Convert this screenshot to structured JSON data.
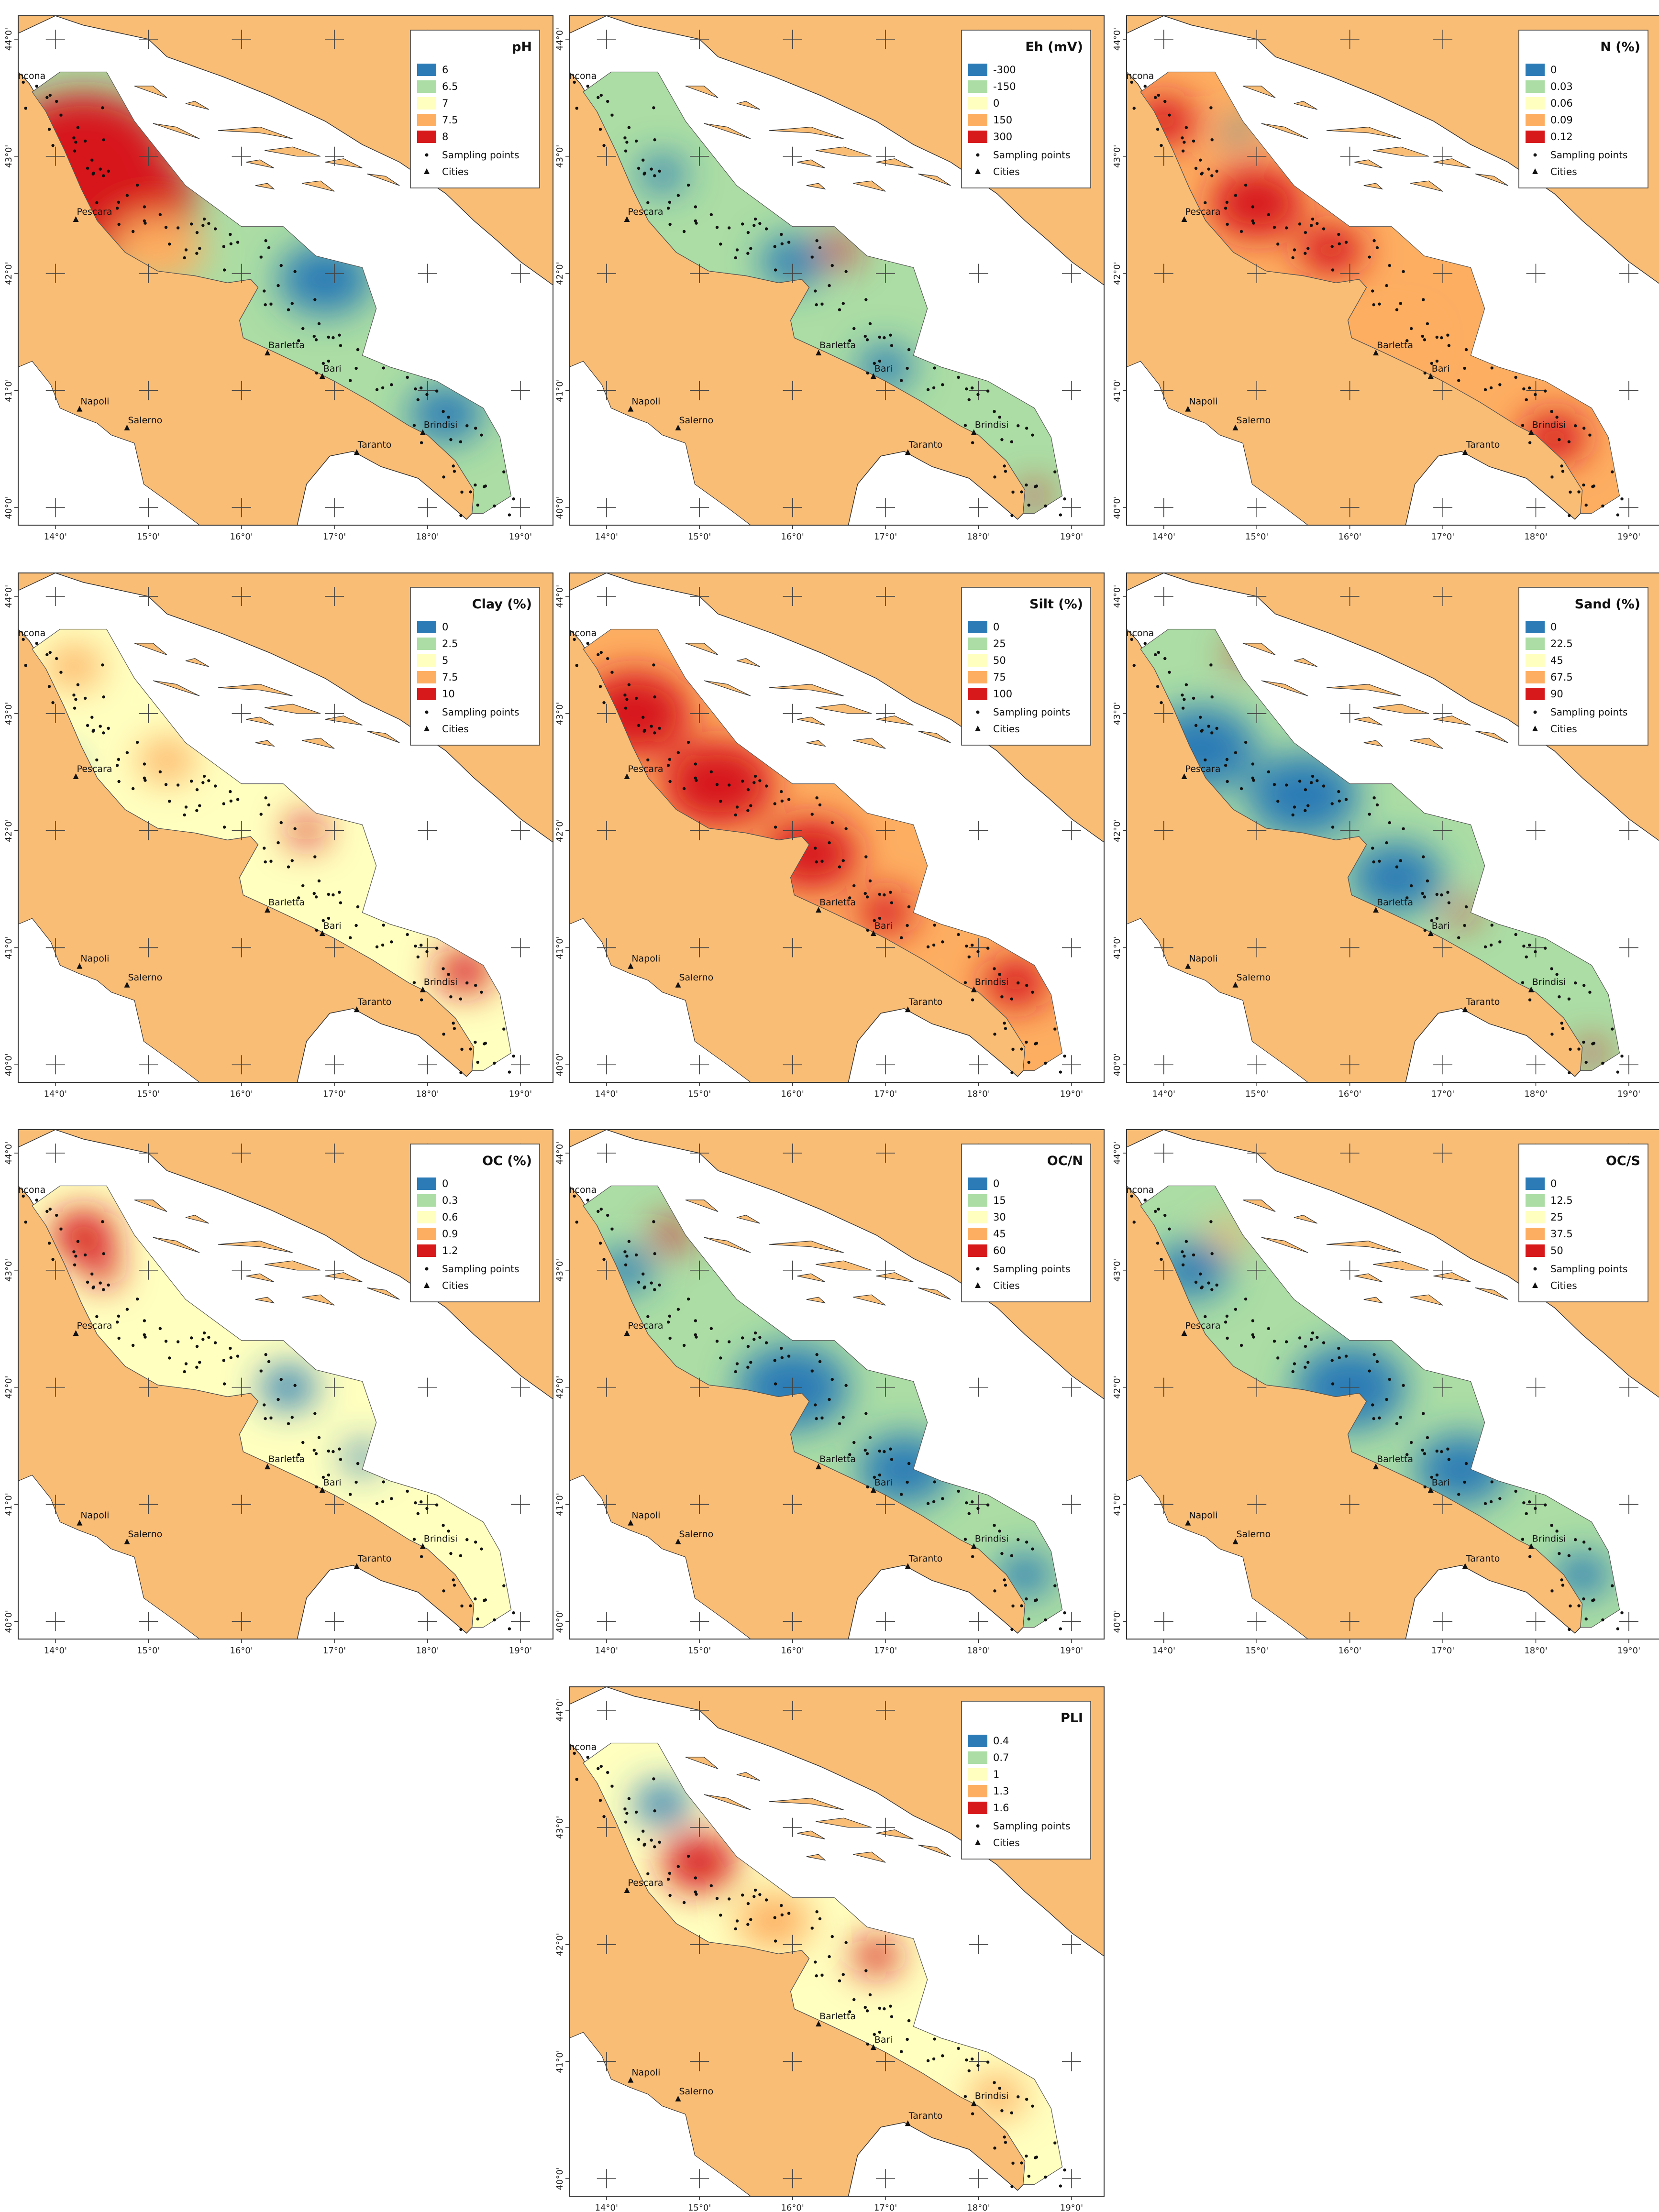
{
  "figure": {
    "x_ticks": [
      "14°0'",
      "15°0'",
      "16°0'",
      "17°0'",
      "18°0'",
      "19°0'"
    ],
    "y_ticks": [
      "44°0'",
      "43°0'",
      "42°0'",
      "41°0'",
      "40°0'"
    ],
    "cities": [
      "Ancona",
      "Pescara",
      "Barletta",
      "Bari",
      "Brindisi",
      "Taranto",
      "Napoli",
      "Salerno"
    ],
    "legend_extra": [
      "Sampling points",
      "Cities"
    ],
    "colors": {
      "land": "#f9bd76",
      "sea": "#ffffff",
      "ramp": [
        "#2c7bb6",
        "#abdda4",
        "#ffffbf",
        "#fdae61",
        "#d7191c"
      ]
    },
    "panels": [
      {
        "title": "pH",
        "breaks": [
          "6",
          "6.5",
          "7",
          "7.5",
          "8"
        ]
      },
      {
        "title": "Eh (mV)",
        "breaks": [
          "-300",
          "-150",
          "0",
          "150",
          "300"
        ]
      },
      {
        "title": "N (%)",
        "breaks": [
          "0",
          "0.03",
          "0.06",
          "0.09",
          "0.12"
        ]
      },
      {
        "title": "Clay (%)",
        "breaks": [
          "0",
          "2.5",
          "5",
          "7.5",
          "10"
        ]
      },
      {
        "title": "Silt (%)",
        "breaks": [
          "0",
          "25",
          "50",
          "75",
          "100"
        ]
      },
      {
        "title": "Sand (%)",
        "breaks": [
          "0",
          "22.5",
          "45",
          "67.5",
          "90"
        ]
      },
      {
        "title": "OC (%)",
        "breaks": [
          "0",
          "0.3",
          "0.6",
          "0.9",
          "1.2"
        ]
      },
      {
        "title": "OC/N",
        "breaks": [
          "0",
          "15",
          "30",
          "45",
          "60"
        ]
      },
      {
        "title": "OC/S",
        "breaks": [
          "0",
          "12.5",
          "25",
          "37.5",
          "50"
        ]
      },
      {
        "title": "PLI",
        "breaks": [
          "0.4",
          "0.7",
          "1",
          "1.3",
          "1.6"
        ]
      }
    ]
  }
}
